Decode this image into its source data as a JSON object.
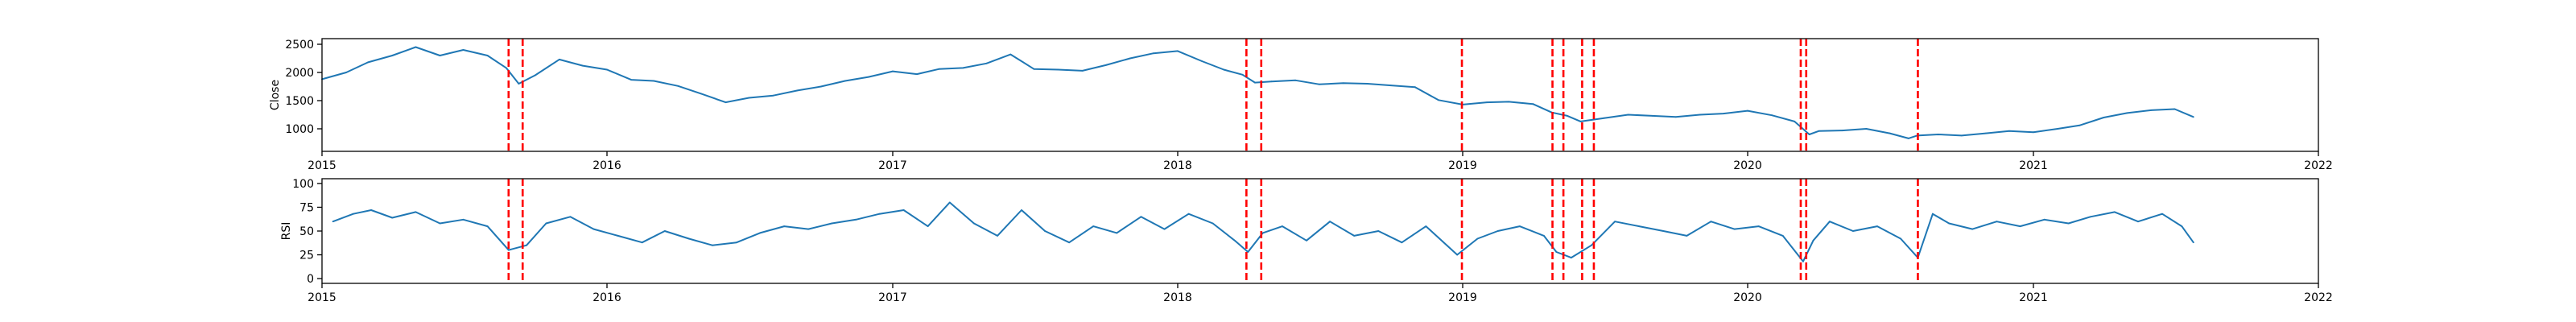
{
  "chart_data": [
    {
      "type": "line",
      "ylabel": "Close",
      "xlim": [
        "2015-01-01",
        "2022-01-01"
      ],
      "ylim": [
        600,
        2600
      ],
      "x_ticks": [
        "2015",
        "2016",
        "2017",
        "2018",
        "2019",
        "2020",
        "2021",
        "2022"
      ],
      "y_ticks": [
        1000,
        1500,
        2000,
        2500
      ],
      "line_color": "#1f77b4",
      "grid": false,
      "series": [
        {
          "x": [
            "2015-01-01",
            "2015-02-01",
            "2015-03-01",
            "2015-04-01",
            "2015-05-01",
            "2015-06-01",
            "2015-07-01",
            "2015-08-01",
            "2015-08-25",
            "2015-09-10",
            "2015-10-01",
            "2015-11-01",
            "2015-12-01",
            "2016-01-01",
            "2016-02-01",
            "2016-03-01",
            "2016-04-01",
            "2016-05-01",
            "2016-06-01",
            "2016-07-01",
            "2016-08-01",
            "2016-09-01",
            "2016-10-01",
            "2016-11-01",
            "2016-12-01",
            "2017-01-01",
            "2017-02-01",
            "2017-03-01",
            "2017-04-01",
            "2017-05-01",
            "2017-06-01",
            "2017-07-01",
            "2017-08-01",
            "2017-09-01",
            "2017-10-01",
            "2017-11-01",
            "2017-12-01",
            "2018-01-01",
            "2018-02-01",
            "2018-03-01",
            "2018-03-25",
            "2018-04-10",
            "2018-05-01",
            "2018-06-01",
            "2018-07-01",
            "2018-08-01",
            "2018-09-01",
            "2018-10-01",
            "2018-11-01",
            "2018-12-01",
            "2019-01-01",
            "2019-02-01",
            "2019-03-01",
            "2019-04-01",
            "2019-04-25",
            "2019-05-15",
            "2019-06-01",
            "2019-07-01",
            "2019-08-01",
            "2019-09-01",
            "2019-10-01",
            "2019-11-01",
            "2019-12-01",
            "2020-01-01",
            "2020-02-01",
            "2020-03-01",
            "2020-03-20",
            "2020-04-01",
            "2020-05-01",
            "2020-06-01",
            "2020-07-01",
            "2020-07-25",
            "2020-08-05",
            "2020-09-01",
            "2020-10-01",
            "2020-11-01",
            "2020-12-01",
            "2021-01-01",
            "2021-02-01",
            "2021-03-01",
            "2021-04-01",
            "2021-05-01",
            "2021-06-01",
            "2021-07-01",
            "2021-07-25"
          ],
          "values": [
            1880,
            2000,
            2180,
            2300,
            2450,
            2300,
            2400,
            2300,
            2080,
            1800,
            1950,
            2230,
            2120,
            2050,
            1870,
            1850,
            1760,
            1620,
            1470,
            1550,
            1590,
            1680,
            1750,
            1850,
            1920,
            2020,
            1970,
            2060,
            2080,
            2160,
            2320,
            2060,
            2050,
            2030,
            2130,
            2250,
            2340,
            2380,
            2200,
            2050,
            1960,
            1820,
            1840,
            1860,
            1790,
            1810,
            1800,
            1770,
            1740,
            1510,
            1430,
            1470,
            1480,
            1440,
            1290,
            1230,
            1130,
            1190,
            1250,
            1230,
            1210,
            1250,
            1270,
            1320,
            1240,
            1130,
            900,
            960,
            970,
            1000,
            920,
            830,
            880,
            900,
            880,
            920,
            960,
            940,
            1000,
            1060,
            1200,
            1280,
            1330,
            1350,
            1210
          ]
        }
      ],
      "markers": [
        "2015-08-28",
        "2015-09-15",
        "2018-03-30",
        "2018-04-18",
        "2018-12-31",
        "2019-04-26",
        "2019-05-10",
        "2019-06-03",
        "2019-06-18",
        "2020-03-09",
        "2020-03-16",
        "2020-08-06"
      ],
      "marker_color": "#ff0000"
    },
    {
      "type": "line",
      "ylabel": "RSI",
      "xlim": [
        "2015-01-01",
        "2022-01-01"
      ],
      "ylim": [
        -5,
        105
      ],
      "x_ticks": [
        "2015",
        "2016",
        "2017",
        "2018",
        "2019",
        "2020",
        "2021",
        "2022"
      ],
      "y_ticks": [
        0,
        25,
        50,
        75,
        100
      ],
      "line_color": "#1f77b4",
      "grid": false,
      "series": [
        {
          "x": [
            "2015-01-15",
            "2015-02-10",
            "2015-03-05",
            "2015-04-01",
            "2015-05-01",
            "2015-06-01",
            "2015-07-01",
            "2015-08-01",
            "2015-08-28",
            "2015-09-20",
            "2015-10-15",
            "2015-11-15",
            "2015-12-15",
            "2016-01-15",
            "2016-02-15",
            "2016-03-15",
            "2016-04-15",
            "2016-05-15",
            "2016-06-15",
            "2016-07-15",
            "2016-08-15",
            "2016-09-15",
            "2016-10-15",
            "2016-11-15",
            "2016-12-15",
            "2017-01-15",
            "2017-02-15",
            "2017-03-15",
            "2017-04-15",
            "2017-05-15",
            "2017-06-15",
            "2017-07-15",
            "2017-08-15",
            "2017-09-15",
            "2017-10-15",
            "2017-11-15",
            "2017-12-15",
            "2018-01-15",
            "2018-02-15",
            "2018-03-15",
            "2018-04-01",
            "2018-04-20",
            "2018-05-15",
            "2018-06-15",
            "2018-07-15",
            "2018-08-15",
            "2018-09-15",
            "2018-10-15",
            "2018-11-15",
            "2018-12-25",
            "2019-01-20",
            "2019-02-15",
            "2019-03-15",
            "2019-04-15",
            "2019-05-01",
            "2019-05-20",
            "2019-06-15",
            "2019-07-15",
            "2019-08-15",
            "2019-09-15",
            "2019-10-15",
            "2019-11-15",
            "2019-12-15",
            "2020-01-15",
            "2020-02-15",
            "2020-03-12",
            "2020-03-25",
            "2020-04-15",
            "2020-05-15",
            "2020-06-15",
            "2020-07-15",
            "2020-08-06",
            "2020-08-25",
            "2020-09-15",
            "2020-10-15",
            "2020-11-15",
            "2020-12-15",
            "2021-01-15",
            "2021-02-15",
            "2021-03-15",
            "2021-04-15",
            "2021-05-15",
            "2021-06-15",
            "2021-07-10",
            "2021-07-25"
          ],
          "values": [
            60,
            68,
            72,
            64,
            70,
            58,
            62,
            55,
            30,
            35,
            58,
            65,
            52,
            45,
            38,
            50,
            42,
            35,
            38,
            48,
            55,
            52,
            58,
            62,
            68,
            72,
            55,
            80,
            58,
            45,
            72,
            50,
            38,
            55,
            48,
            65,
            52,
            68,
            58,
            40,
            28,
            48,
            55,
            40,
            60,
            45,
            50,
            38,
            55,
            25,
            42,
            50,
            55,
            45,
            28,
            22,
            35,
            60,
            55,
            50,
            45,
            60,
            52,
            55,
            45,
            18,
            40,
            60,
            50,
            55,
            42,
            22,
            68,
            58,
            52,
            60,
            55,
            62,
            58,
            65,
            70,
            60,
            68,
            55,
            38
          ]
        }
      ],
      "markers": [
        "2015-08-28",
        "2015-09-15",
        "2018-03-30",
        "2018-04-18",
        "2018-12-31",
        "2019-04-26",
        "2019-05-10",
        "2019-06-03",
        "2019-06-18",
        "2020-03-09",
        "2020-03-16",
        "2020-08-06"
      ],
      "marker_color": "#ff0000"
    }
  ]
}
